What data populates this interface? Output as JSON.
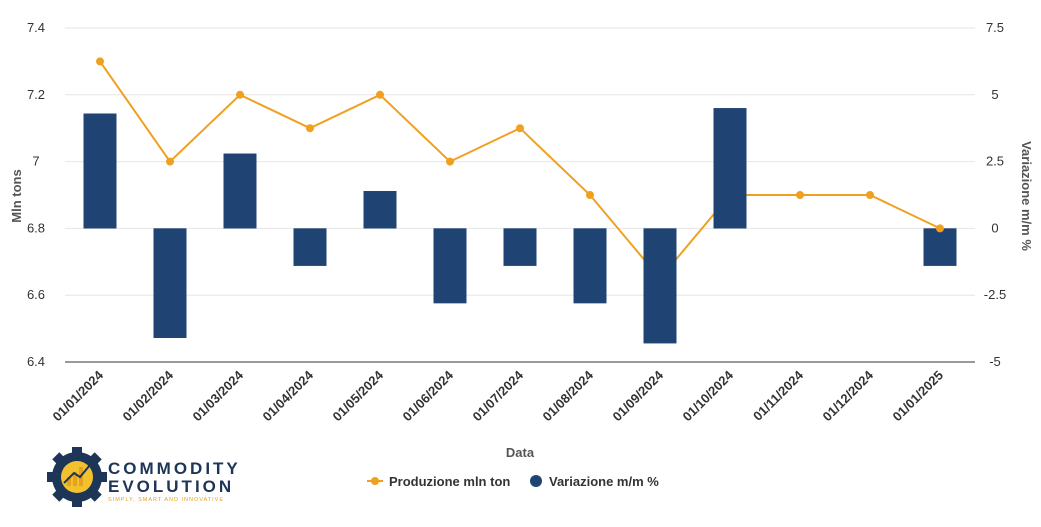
{
  "chart_data": {
    "type": "bar+line",
    "categories": [
      "01/01/2024",
      "01/02/2024",
      "01/03/2024",
      "01/04/2024",
      "01/05/2024",
      "01/06/2024",
      "01/07/2024",
      "01/08/2024",
      "01/09/2024",
      "01/10/2024",
      "01/11/2024",
      "01/12/2024",
      "01/01/2025"
    ],
    "series": [
      {
        "name": "Produzione mln ton",
        "type": "line",
        "axis": "left",
        "color": "#f0a020",
        "values": [
          7.3,
          7.0,
          7.2,
          7.1,
          7.2,
          7.0,
          7.1,
          6.9,
          6.65,
          6.9,
          6.9,
          6.9,
          6.8
        ]
      },
      {
        "name": "Variazione m/m %",
        "type": "bar",
        "axis": "right",
        "color": "#1f4473",
        "values": [
          4.3,
          -4.1,
          2.8,
          -1.4,
          1.4,
          -2.8,
          -1.4,
          -2.8,
          -4.3,
          4.5,
          0,
          0,
          -1.4
        ]
      }
    ],
    "xlabel": "Data",
    "ylabel_left": "Mln tons",
    "ylabel_right": "Variazione m/m %",
    "ylim_left": [
      6.4,
      7.4
    ],
    "yticks_left": [
      "6.4",
      "6.6",
      "6.8",
      "7",
      "7.2",
      "7.4"
    ],
    "ylim_right": [
      -5,
      7.5
    ],
    "yticks_right": [
      "-5",
      "-2.5",
      "0",
      "2.5",
      "5",
      "7.5"
    ],
    "grid": true,
    "legend_position": "bottom-center"
  },
  "logo": {
    "title": "COMMODITY EVOLUTION",
    "tagline": "SIMPLY, SMART AND INNOVATIVE"
  }
}
